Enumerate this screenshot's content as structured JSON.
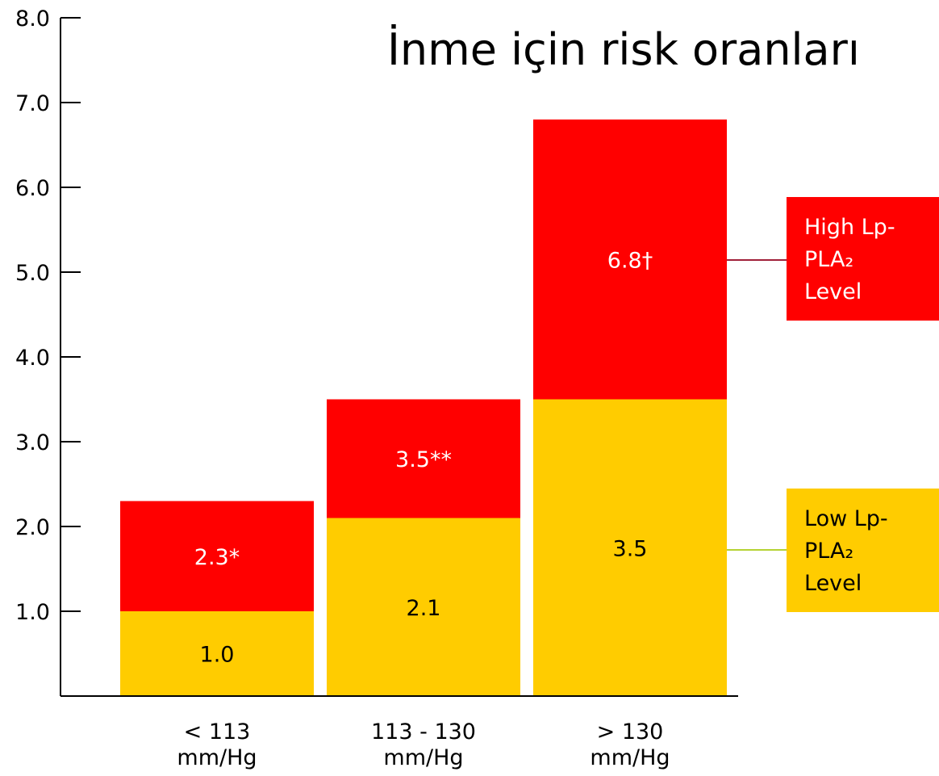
{
  "chart_data": {
    "type": "bar",
    "title": "İnme için risk oranları",
    "categories": [
      "< 113 mm/Hg",
      "113 - 130 mm/Hg",
      "> 130 mm/Hg"
    ],
    "series": [
      {
        "name": "High Lp-PLA₂ Level",
        "color": "#ff0000",
        "values": [
          2.3,
          3.5,
          6.8
        ],
        "value_labels": [
          "2.3*",
          "3.5**",
          "6.8†"
        ]
      },
      {
        "name": "Low Lp-PLA₂ Level",
        "color": "#ffcc00",
        "values": [
          1.0,
          2.1,
          3.5
        ],
        "value_labels": [
          "1.0",
          "2.1",
          "3.5"
        ]
      }
    ],
    "ylim": [
      0,
      8
    ],
    "yticks": [
      {
        "value": 1,
        "label": "1.0"
      },
      {
        "value": 2,
        "label": "2.0"
      },
      {
        "value": 3,
        "label": "3.0"
      },
      {
        "value": 4,
        "label": "4.0"
      },
      {
        "value": 5,
        "label": "5.0"
      },
      {
        "value": 6,
        "label": "6.0"
      },
      {
        "value": 7,
        "label": "7.0"
      },
      {
        "value": 8,
        "label": "8.0"
      }
    ]
  }
}
